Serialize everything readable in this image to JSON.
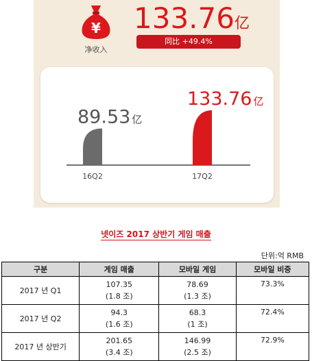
{
  "infographic": {
    "icon_symbol": "¥",
    "icon_label": "净收入",
    "big_value": "133.76",
    "big_unit": "亿",
    "growth_label": "同比 +49.4%",
    "brand_red": "#d9191b",
    "gray_bar": "#6b6b6b"
  },
  "chart_data": {
    "type": "bar",
    "categories": [
      "16Q2",
      "17Q2"
    ],
    "values": [
      89.53,
      133.76
    ],
    "value_labels": [
      "89.53",
      "133.76"
    ],
    "unit": "亿",
    "colors": [
      "#6b6b6b",
      "#d9191b"
    ]
  },
  "heading": "넷이즈 2017 상반기 게임 매출",
  "unit_note": "단위:억 RMB",
  "table": {
    "headers": [
      "구분",
      "게임 매출",
      "모바일 게임",
      "모바일 비중"
    ],
    "rows": [
      {
        "period": "2017 년 Q1",
        "game": "107.35",
        "game_krw": "(1.8 조)",
        "mobile": "78.69",
        "mobile_krw": "(1.3 조)",
        "share": "73.3%"
      },
      {
        "period": "2017 년 Q2",
        "game": "94.3",
        "game_krw": "(1.6 조)",
        "mobile": "68.3",
        "mobile_krw": "(1 조)",
        "share": "72.4%"
      },
      {
        "period": "2017 년 상반기",
        "game": "201.65",
        "game_krw": "(3.4 조)",
        "mobile": "146.99",
        "mobile_krw": "(2.5 조)",
        "share": "72.9%"
      }
    ]
  }
}
